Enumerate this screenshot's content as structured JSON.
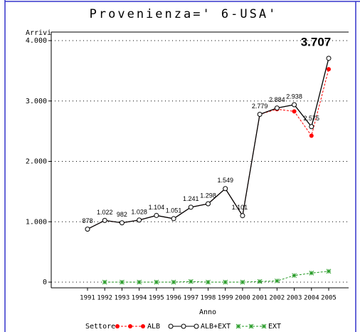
{
  "chart_data": {
    "type": "line",
    "title": "Provenienza=' 6-USA'",
    "y_label": "Arrivi",
    "x_label": "Anno",
    "legend_title": "Settore",
    "categories": [
      "1991",
      "1992",
      "1993",
      "1994",
      "1995",
      "1996",
      "1997",
      "1998",
      "1999",
      "2000",
      "2001",
      "2002",
      "2003",
      "2004",
      "2005"
    ],
    "series": [
      {
        "name": "ALB",
        "color": "#ff0000",
        "values": [
          878,
          1022,
          982,
          1028,
          1104,
          1051,
          1241,
          1298,
          1549,
          1101,
          2779,
          2864,
          2828,
          2425,
          3527
        ]
      },
      {
        "name": "ALB+EXT",
        "color": "#000000",
        "values": [
          878,
          1022,
          982,
          1028,
          1104,
          1051,
          1241,
          1298,
          1549,
          1101,
          2779,
          2884,
          2938,
          2575,
          3707
        ],
        "value_labels": [
          "878",
          "1.022",
          "982",
          "1.028",
          "1.104",
          "1.051",
          "1.241",
          "1.298",
          "1.549",
          "1.101",
          "2.779",
          "2.884",
          "2.938",
          "2.575",
          "3.707"
        ]
      },
      {
        "name": "EXT",
        "color": "#229922",
        "values": [
          null,
          0,
          0,
          0,
          0,
          0,
          10,
          0,
          0,
          0,
          10,
          20,
          110,
          150,
          180
        ]
      }
    ],
    "ylim": [
      0,
      4000
    ],
    "yticks": [
      0,
      {
        "value": 1000,
        "label": "1.000"
      },
      {
        "value": 2000,
        "label": "2.000"
      },
      {
        "value": 3000,
        "label": "3.000"
      },
      {
        "value": 4000,
        "label": "4.000"
      }
    ],
    "grid": true
  }
}
